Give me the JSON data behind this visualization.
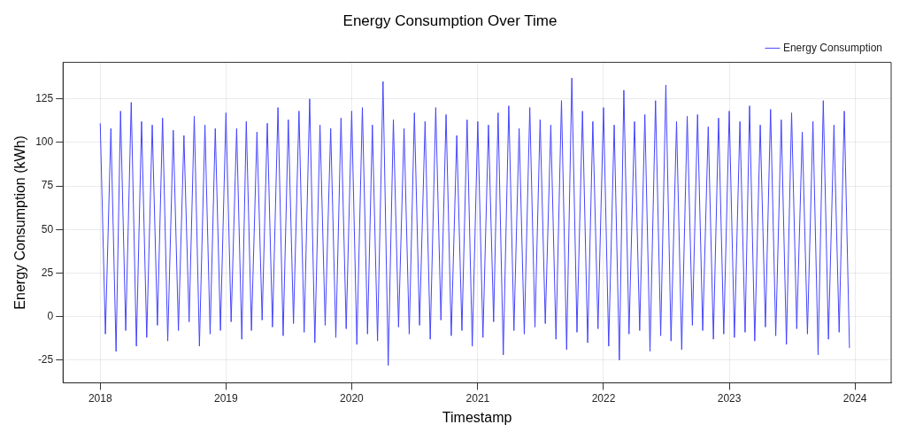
{
  "chart_data": {
    "type": "line",
    "title": "Energy Consumption Over Time",
    "xlabel": "Timestamp",
    "ylabel": "Energy Consumption (kWh)",
    "x": [
      "2018-01-01",
      "2018-01-16",
      "2018-02-01",
      "2018-02-16",
      "2018-03-01",
      "2018-03-16",
      "2018-04-01",
      "2018-04-16",
      "2018-05-01",
      "2018-05-16",
      "2018-06-01",
      "2018-06-16",
      "2018-07-01",
      "2018-07-16",
      "2018-08-01",
      "2018-08-16",
      "2018-09-01",
      "2018-09-16",
      "2018-10-01",
      "2018-10-16",
      "2018-11-01",
      "2018-11-16",
      "2018-12-01",
      "2018-12-16",
      "2019-01-01",
      "2019-01-16",
      "2019-02-01",
      "2019-02-16",
      "2019-03-01",
      "2019-03-16",
      "2019-04-01",
      "2019-04-16",
      "2019-05-01",
      "2019-05-16",
      "2019-06-01",
      "2019-06-16",
      "2019-07-01",
      "2019-07-16",
      "2019-08-01",
      "2019-08-16",
      "2019-09-01",
      "2019-09-16",
      "2019-10-01",
      "2019-10-16",
      "2019-11-01",
      "2019-11-16",
      "2019-12-01",
      "2019-12-16",
      "2020-01-01",
      "2020-01-16",
      "2020-02-01",
      "2020-02-16",
      "2020-03-01",
      "2020-03-16",
      "2020-04-01",
      "2020-04-16",
      "2020-05-01",
      "2020-05-16",
      "2020-06-01",
      "2020-06-16",
      "2020-07-01",
      "2020-07-16",
      "2020-08-01",
      "2020-08-16",
      "2020-09-01",
      "2020-09-16",
      "2020-10-01",
      "2020-10-16",
      "2020-11-01",
      "2020-11-16",
      "2020-12-01",
      "2020-12-16",
      "2021-01-01",
      "2021-01-16",
      "2021-02-01",
      "2021-02-16",
      "2021-03-01",
      "2021-03-16",
      "2021-04-01",
      "2021-04-16",
      "2021-05-01",
      "2021-05-16",
      "2021-06-01",
      "2021-06-16",
      "2021-07-01",
      "2021-07-16",
      "2021-08-01",
      "2021-08-16",
      "2021-09-01",
      "2021-09-16",
      "2021-10-01",
      "2021-10-16",
      "2021-11-01",
      "2021-11-16",
      "2021-12-01",
      "2021-12-16",
      "2022-01-01",
      "2022-01-16",
      "2022-02-01",
      "2022-02-16",
      "2022-03-01",
      "2022-03-16",
      "2022-04-01",
      "2022-04-16",
      "2022-05-01",
      "2022-05-16",
      "2022-06-01",
      "2022-06-16",
      "2022-07-01",
      "2022-07-16",
      "2022-08-01",
      "2022-08-16",
      "2022-09-01",
      "2022-09-16",
      "2022-10-01",
      "2022-10-16",
      "2022-11-01",
      "2022-11-16",
      "2022-12-01",
      "2022-12-16",
      "2023-01-01",
      "2023-01-16",
      "2023-02-01",
      "2023-02-16",
      "2023-03-01",
      "2023-03-16",
      "2023-04-01",
      "2023-04-16",
      "2023-05-01",
      "2023-05-16",
      "2023-06-01",
      "2023-06-16",
      "2023-07-01",
      "2023-07-16",
      "2023-08-01",
      "2023-08-16",
      "2023-09-01",
      "2023-09-16",
      "2023-10-01",
      "2023-10-16",
      "2023-11-01",
      "2023-11-16",
      "2023-12-01",
      "2023-12-16"
    ],
    "series": [
      {
        "name": "Energy Consumption",
        "color": "#4444ff",
        "values": [
          111,
          -10,
          108,
          -20,
          118,
          -8,
          123,
          -17,
          112,
          -12,
          110,
          -5,
          114,
          -14,
          107,
          -8,
          104,
          -3,
          115,
          -17,
          110,
          -10,
          108,
          -8,
          117,
          -3,
          108,
          -13,
          112,
          -8,
          106,
          -2,
          111,
          -6,
          120,
          -11,
          113,
          -4,
          118,
          -9,
          125,
          -15,
          110,
          -5,
          108,
          -12,
          114,
          -7,
          118,
          -16,
          120,
          -10,
          110,
          -14,
          135,
          -28,
          113,
          -6,
          108,
          -10,
          117,
          -5,
          112,
          -13,
          120,
          -2,
          116,
          -11,
          104,
          -8,
          113,
          -17,
          112,
          -12,
          110,
          -3,
          117,
          -22,
          121,
          -8,
          108,
          -10,
          120,
          -6,
          113,
          -4,
          110,
          -13,
          124,
          -19,
          137,
          -9,
          118,
          -15,
          112,
          -7,
          120,
          -17,
          110,
          -25,
          130,
          -10,
          112,
          -8,
          116,
          -20,
          124,
          -11,
          133,
          -14,
          112,
          -19,
          115,
          -5,
          116,
          -8,
          109,
          -13,
          114,
          -10,
          118,
          -12,
          112,
          -9,
          121,
          -14,
          110,
          -6,
          119,
          -11,
          113,
          -16,
          117,
          -7,
          106,
          -10,
          112,
          -22,
          124,
          -13,
          110,
          -9,
          118,
          -18
        ]
      }
    ],
    "xlim": [
      "2017-09-15",
      "2024-04-15"
    ],
    "xticks": [
      "2018",
      "2019",
      "2020",
      "2021",
      "2022",
      "2023",
      "2024"
    ],
    "ylim": [
      -38,
      146
    ],
    "yticks": [
      -25,
      0,
      25,
      50,
      75,
      100,
      125
    ],
    "grid": true,
    "legend": "top right",
    "marker": "none",
    "line_style": "solid"
  }
}
